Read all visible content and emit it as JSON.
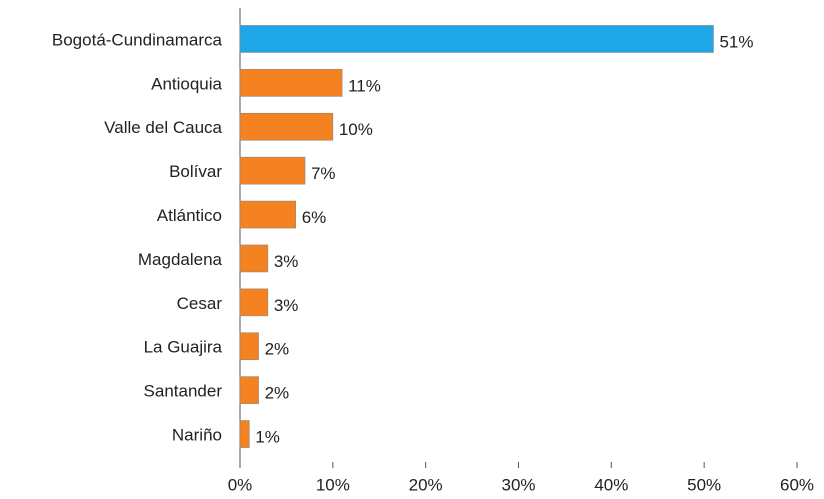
{
  "chart_data": {
    "type": "barh",
    "categories": [
      "Bogotá-Cundinamarca",
      "Antioquia",
      "Valle del Cauca",
      "Bolívar",
      "Atlántico",
      "Magdalena",
      "Cesar",
      "La Guajira",
      "Santander",
      "Nariño"
    ],
    "values": [
      51,
      11,
      10,
      7,
      6,
      3,
      3,
      2,
      2,
      1
    ],
    "value_labels": [
      "51%",
      "11%",
      "10%",
      "7%",
      "6%",
      "3%",
      "3%",
      "2%",
      "2%",
      "1%"
    ],
    "colors": [
      "#1ea7e8",
      "#f58220",
      "#f58220",
      "#f58220",
      "#f58220",
      "#f58220",
      "#f58220",
      "#f58220",
      "#f58220",
      "#f58220"
    ],
    "xlim": [
      0,
      60
    ],
    "xticks": [
      {
        "value": 0,
        "label": "0%"
      },
      {
        "value": 10,
        "label": "10%"
      },
      {
        "value": 20,
        "label": "20%"
      },
      {
        "value": 30,
        "label": "30%"
      },
      {
        "value": 40,
        "label": "40%"
      },
      {
        "value": 50,
        "label": "50%"
      },
      {
        "value": 60,
        "label": "60%"
      }
    ],
    "grid": false
  }
}
